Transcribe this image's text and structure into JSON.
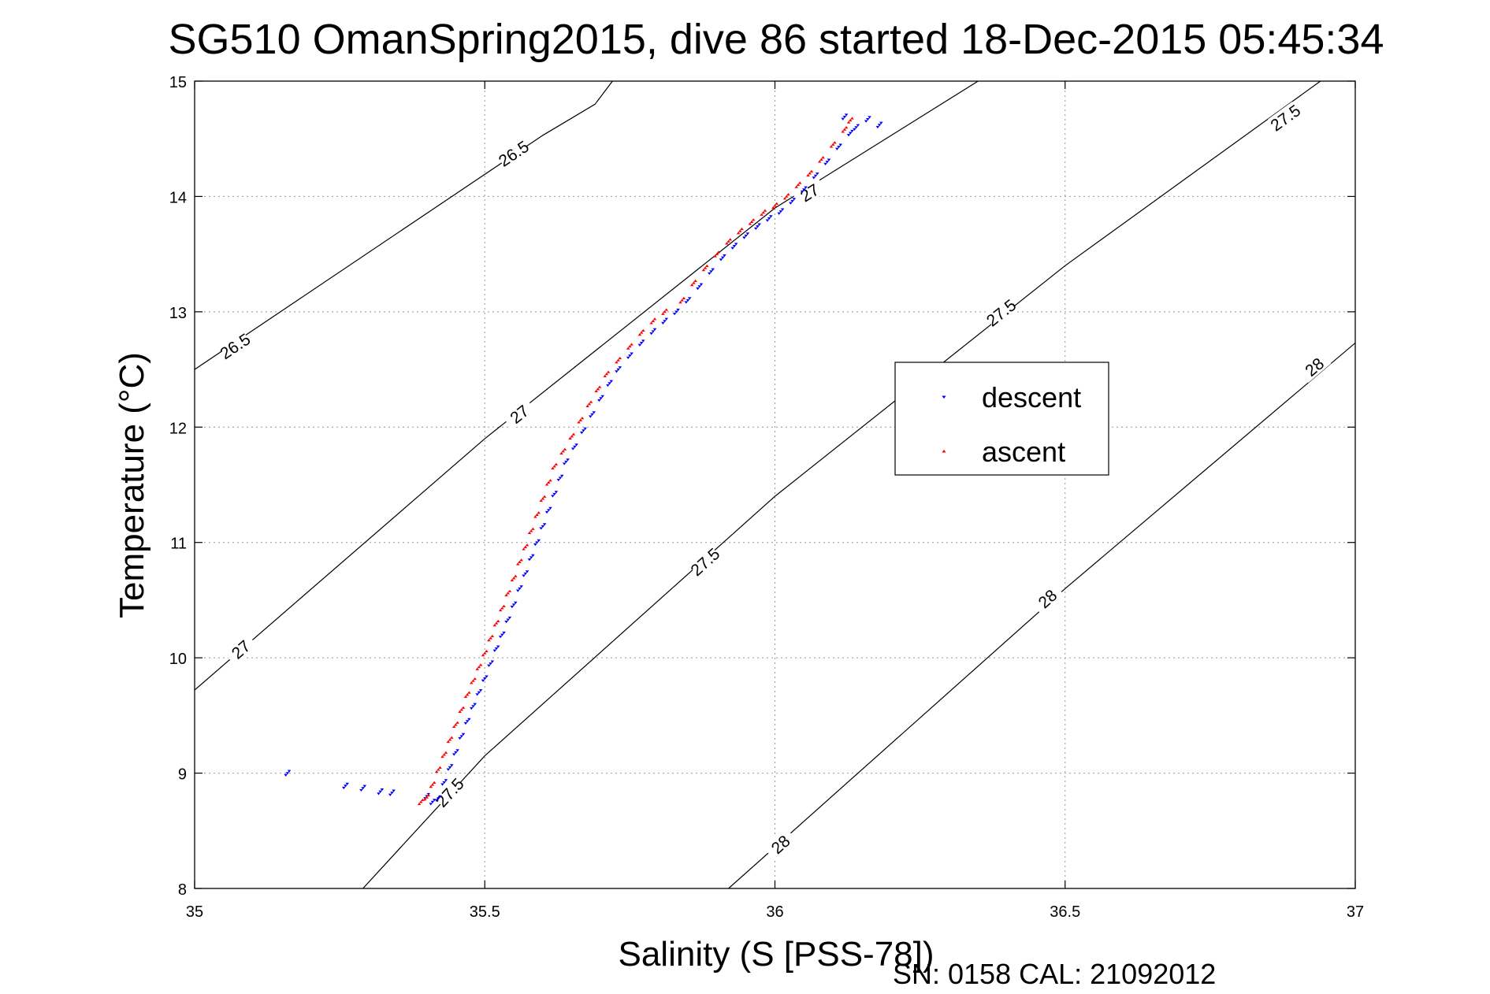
{
  "chart_data": {
    "type": "scatter",
    "title": "SG510 OmanSpring2015, dive 86 started 18-Dec-2015 05:45:34",
    "xlabel": "Salinity (S [PSS-78])",
    "ylabel": "Temperature (°C)",
    "xlim": [
      35,
      37
    ],
    "ylim": [
      8,
      15
    ],
    "xticks": [
      "35",
      "35.5",
      "36",
      "36.5",
      "37"
    ],
    "yticks": [
      "8",
      "9",
      "10",
      "11",
      "12",
      "13",
      "14",
      "15"
    ],
    "grid": true,
    "legend_position": "right",
    "footer": "SN: 0158  CAL: 21092012",
    "colors": {
      "descent": "#0000ff",
      "ascent": "#ff0000",
      "contour": "#000000",
      "grid": "#999999"
    },
    "density_contours": [
      {
        "value": "26.5",
        "points": [
          [
            35,
            12.5
          ],
          [
            35.6,
            14.53
          ],
          [
            35.69,
            14.8
          ],
          [
            35.72,
            15
          ]
        ],
        "labels": [
          {
            "s": 35.07,
            "t": 12.7
          },
          {
            "s": 35.55,
            "t": 14.37
          }
        ]
      },
      {
        "value": "27",
        "points": [
          [
            35,
            9.72
          ],
          [
            35.5,
            11.9
          ],
          [
            36,
            13.9
          ],
          [
            36.35,
            15
          ]
        ],
        "labels": [
          {
            "s": 35.08,
            "t": 10.07
          },
          {
            "s": 35.56,
            "t": 12.11
          },
          {
            "s": 36.06,
            "t": 14.03
          }
        ]
      },
      {
        "value": "27.5",
        "points": [
          [
            35.29,
            8
          ],
          [
            35.5,
            9.15
          ],
          [
            36,
            11.4
          ],
          [
            36.5,
            13.4
          ],
          [
            36.94,
            15
          ]
        ],
        "labels": [
          {
            "s": 35.44,
            "t": 8.83
          },
          {
            "s": 35.88,
            "t": 10.83
          },
          {
            "s": 36.39,
            "t": 12.99
          },
          {
            "s": 36.88,
            "t": 14.68
          }
        ]
      },
      {
        "value": "28",
        "points": [
          [
            35.92,
            8
          ],
          [
            36.5,
            10.6
          ],
          [
            37,
            12.73
          ]
        ],
        "labels": [
          {
            "s": 36.01,
            "t": 8.38
          },
          {
            "s": 36.47,
            "t": 10.51
          },
          {
            "s": 36.93,
            "t": 12.52
          }
        ]
      }
    ],
    "series": [
      {
        "name": "descent",
        "marker": "triangle-down",
        "values": [
          [
            35.16,
            9.0
          ],
          [
            35.26,
            8.89
          ],
          [
            35.29,
            8.87
          ],
          [
            35.32,
            8.84
          ],
          [
            35.34,
            8.83
          ],
          [
            35.4,
            8.8
          ],
          [
            35.41,
            8.75
          ],
          [
            35.42,
            8.78
          ],
          [
            35.43,
            8.92
          ],
          [
            35.44,
            9.05
          ],
          [
            35.45,
            9.18
          ],
          [
            35.46,
            9.32
          ],
          [
            35.47,
            9.45
          ],
          [
            35.48,
            9.58
          ],
          [
            35.49,
            9.7
          ],
          [
            35.5,
            9.82
          ],
          [
            35.51,
            9.95
          ],
          [
            35.52,
            10.08
          ],
          [
            35.53,
            10.2
          ],
          [
            35.54,
            10.33
          ],
          [
            35.55,
            10.46
          ],
          [
            35.56,
            10.6
          ],
          [
            35.57,
            10.73
          ],
          [
            35.58,
            10.87
          ],
          [
            35.59,
            11.0
          ],
          [
            35.6,
            11.14
          ],
          [
            35.61,
            11.28
          ],
          [
            35.62,
            11.42
          ],
          [
            35.63,
            11.56
          ],
          [
            35.64,
            11.7
          ],
          [
            35.655,
            11.83
          ],
          [
            35.67,
            11.97
          ],
          [
            35.685,
            12.11
          ],
          [
            35.7,
            12.25
          ],
          [
            35.715,
            12.38
          ],
          [
            35.73,
            12.5
          ],
          [
            35.75,
            12.62
          ],
          [
            35.77,
            12.73
          ],
          [
            35.79,
            12.83
          ],
          [
            35.81,
            12.92
          ],
          [
            35.83,
            13.0
          ],
          [
            35.85,
            13.1
          ],
          [
            35.87,
            13.22
          ],
          [
            35.89,
            13.35
          ],
          [
            35.91,
            13.47
          ],
          [
            35.93,
            13.57
          ],
          [
            35.95,
            13.66
          ],
          [
            35.97,
            13.74
          ],
          [
            35.99,
            13.81
          ],
          [
            36.01,
            13.87
          ],
          [
            36.03,
            13.96
          ],
          [
            36.05,
            14.06
          ],
          [
            36.07,
            14.18
          ],
          [
            36.09,
            14.3
          ],
          [
            36.11,
            14.43
          ],
          [
            36.13,
            14.55
          ],
          [
            36.12,
            14.69
          ],
          [
            36.14,
            14.6
          ],
          [
            36.16,
            14.67
          ],
          [
            36.18,
            14.62
          ]
        ]
      },
      {
        "name": "ascent",
        "marker": "triangle-up",
        "values": [
          [
            35.39,
            8.75
          ],
          [
            35.4,
            8.79
          ],
          [
            35.41,
            8.9
          ],
          [
            35.42,
            9.03
          ],
          [
            35.43,
            9.16
          ],
          [
            35.44,
            9.29
          ],
          [
            35.45,
            9.42
          ],
          [
            35.46,
            9.55
          ],
          [
            35.47,
            9.68
          ],
          [
            35.48,
            9.8
          ],
          [
            35.49,
            9.92
          ],
          [
            35.5,
            10.04
          ],
          [
            35.51,
            10.17
          ],
          [
            35.52,
            10.3
          ],
          [
            35.53,
            10.43
          ],
          [
            35.54,
            10.56
          ],
          [
            35.55,
            10.69
          ],
          [
            35.56,
            10.83
          ],
          [
            35.57,
            10.96
          ],
          [
            35.58,
            11.1
          ],
          [
            35.59,
            11.24
          ],
          [
            35.6,
            11.38
          ],
          [
            35.61,
            11.52
          ],
          [
            35.62,
            11.66
          ],
          [
            35.635,
            11.79
          ],
          [
            35.65,
            11.92
          ],
          [
            35.665,
            12.06
          ],
          [
            35.68,
            12.2
          ],
          [
            35.695,
            12.33
          ],
          [
            35.71,
            12.46
          ],
          [
            35.73,
            12.58
          ],
          [
            35.75,
            12.7
          ],
          [
            35.77,
            12.82
          ],
          [
            35.79,
            12.92
          ],
          [
            35.81,
            13.0
          ],
          [
            35.84,
            13.1
          ],
          [
            35.86,
            13.25
          ],
          [
            35.88,
            13.38
          ],
          [
            35.9,
            13.5
          ],
          [
            35.92,
            13.61
          ],
          [
            35.94,
            13.7
          ],
          [
            35.96,
            13.78
          ],
          [
            35.98,
            13.86
          ],
          [
            36.0,
            13.92
          ],
          [
            36.02,
            14.0
          ],
          [
            36.04,
            14.1
          ],
          [
            36.06,
            14.2
          ],
          [
            36.08,
            14.32
          ],
          [
            36.1,
            14.45
          ],
          [
            36.12,
            14.58
          ],
          [
            36.13,
            14.66
          ]
        ]
      }
    ]
  }
}
